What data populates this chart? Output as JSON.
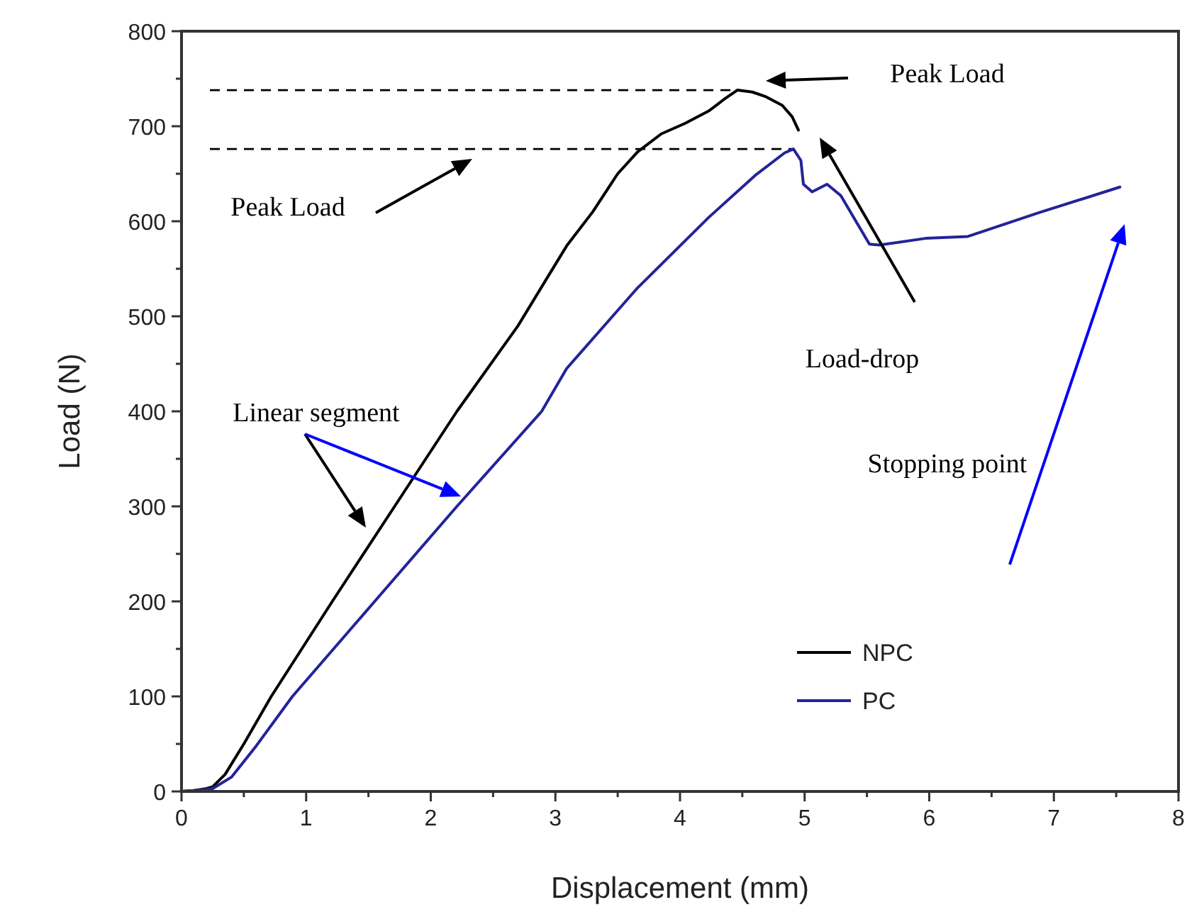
{
  "chart_data": {
    "type": "line",
    "xlabel": "Displacement (mm)",
    "ylabel": "Load (N)",
    "xlim": [
      0,
      8
    ],
    "xticks": [
      0,
      1,
      2,
      3,
      4,
      5,
      6,
      7,
      8
    ],
    "ylim": [
      0,
      800
    ],
    "yticks": [
      0,
      100,
      200,
      300,
      400,
      500,
      600,
      700,
      800
    ],
    "grid": false,
    "legend": "bottom right",
    "line_style": "solid",
    "marker": "none",
    "series": [
      {
        "name": "NPC",
        "color": "#000000",
        "x": [
          0,
          0.1,
          0.2,
          0.25,
          0.35,
          0.5,
          0.72,
          1.21,
          1.71,
          2.21,
          2.7,
          3.09,
          3.3,
          3.5,
          3.66,
          3.85,
          4.04,
          4.23,
          4.35,
          4.46,
          4.58,
          4.69,
          4.82,
          4.9,
          4.95
        ],
        "values": [
          0,
          1,
          3,
          5,
          18,
          50,
          100,
          200,
          300,
          400,
          490,
          574,
          610,
          650,
          673,
          692,
          703,
          716,
          728,
          738,
          736,
          731,
          722,
          710,
          696
        ]
      },
      {
        "name": "PC",
        "color": "#23239a",
        "x": [
          0,
          0.1,
          0.2,
          0.25,
          0.4,
          0.6,
          0.89,
          1.55,
          2.21,
          2.89,
          3.09,
          3.66,
          4.23,
          4.61,
          4.84,
          4.91,
          4.97,
          4.99,
          5.06,
          5.18,
          5.29,
          5.52,
          5.6,
          5.97,
          6.31,
          6.88,
          7.53
        ],
        "values": [
          0,
          1,
          2,
          3,
          15,
          48,
          100,
          200,
          300,
          400,
          445,
          530,
          604,
          649,
          672,
          676,
          664,
          639,
          631,
          639,
          627,
          576,
          575,
          582,
          584,
          609,
          636
        ]
      }
    ],
    "ref_lines": [
      {
        "axis": "y",
        "value": 738,
        "color": "#000000",
        "line_style": "dashed"
      },
      {
        "axis": "y",
        "value": 676,
        "color": "#000000",
        "line_style": "dashed"
      }
    ],
    "annotations": [
      "Peak Load",
      "Peak Load",
      "Load-drop",
      "Linear segment",
      "Stopping point"
    ]
  }
}
